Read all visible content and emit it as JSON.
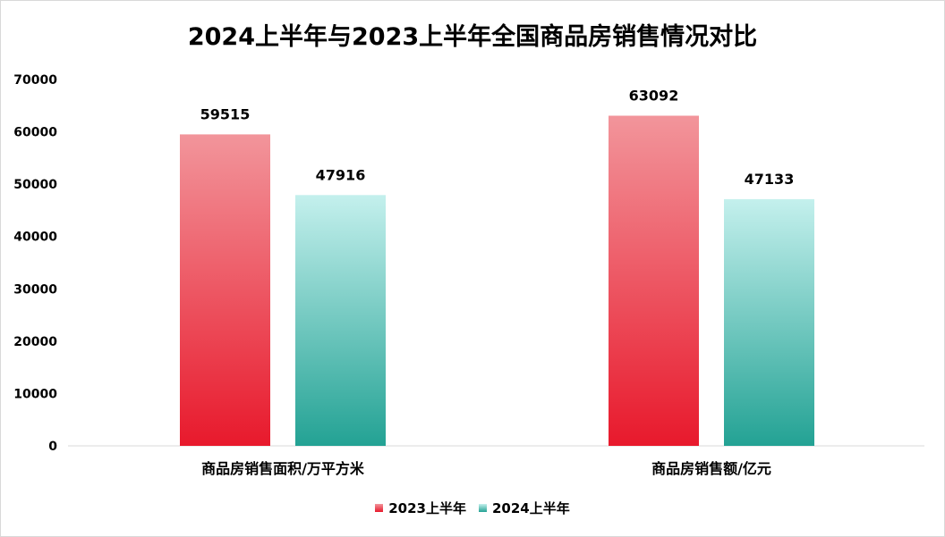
{
  "chart_data": {
    "type": "bar",
    "title": "2024上半年与2023上半年全国商品房销售情况对比",
    "categories": [
      "商品房销售面积/万平方米",
      "商品房销售额/亿元"
    ],
    "series": [
      {
        "name": "2023上半年",
        "values": [
          59515,
          63092
        ],
        "color_top": "#f2959b",
        "color_bottom": "#e8192c"
      },
      {
        "name": "2024上半年",
        "values": [
          47916,
          47133
        ],
        "color_top": "#c4f0ed",
        "color_bottom": "#23a294"
      }
    ],
    "ylim": [
      0,
      70000
    ],
    "yticks": [
      "0",
      "10000",
      "20000",
      "30000",
      "40000",
      "50000",
      "60000",
      "70000"
    ],
    "grid": false,
    "legend_position": "bottom"
  }
}
